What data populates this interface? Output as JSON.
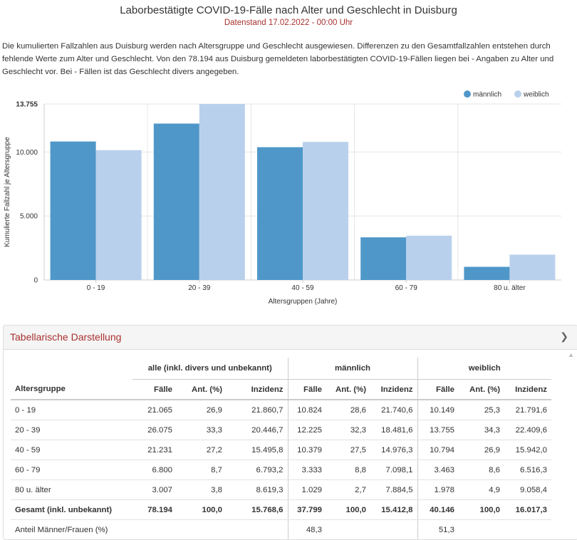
{
  "header": {
    "title": "Laborbestätigte COVID-19-Fälle nach Alter und Geschlecht in Duisburg",
    "subtitle": "Datenstand 17.02.2022 - 00:00 Uhr",
    "description": "Die kumulierten Fallzahlen aus Duisburg werden nach Altersgruppe und Geschlecht ausgewiesen. Differenzen zu den Gesamtfallzahlen entstehen durch fehlende Werte zum Alter und Geschlecht. Von den 78.194 aus Duisburg gemeldeten laborbestätigten COVID-19-Fällen liegen bei - Angaben zu Alter und Geschlecht vor. Bei - Fällen ist das Geschlecht divers angegeben."
  },
  "colors": {
    "male": "#4f97c9",
    "female": "#b9d0ec",
    "accent": "#a8312f"
  },
  "chart_data": {
    "type": "bar",
    "categories": [
      "0 - 19",
      "20 - 39",
      "40 - 59",
      "60 - 79",
      "80 u. älter"
    ],
    "series": [
      {
        "name": "männlich",
        "values": [
          10824,
          12225,
          10379,
          3333,
          1029
        ]
      },
      {
        "name": "weiblich",
        "values": [
          10149,
          13755,
          10794,
          3463,
          1978
        ]
      }
    ],
    "ylabel": "Kumulierte Fallzahl je Altersgruppe",
    "xlabel": "Altersgruppen (Jahre)",
    "ylim": [
      0,
      13755
    ],
    "yticks": [
      0,
      5000,
      10000,
      13755
    ],
    "ytick_labels": [
      "0",
      "5.000",
      "10.000",
      "13.755"
    ],
    "legend_position": "top-right",
    "grid": true
  },
  "table_panel": {
    "title": "Tabellarische Darstellung",
    "group_headers": [
      "alle (inkl. divers und unbekannt)",
      "männlich",
      "weiblich"
    ],
    "column_headers": [
      "Altersgruppe",
      "Fälle",
      "Ant. (%)",
      "Inzidenz",
      "Fälle",
      "Ant. (%)",
      "Inzidenz",
      "Fälle",
      "Ant. (%)",
      "Inzidenz"
    ],
    "rows": [
      [
        "0 - 19",
        "21.065",
        "26,9",
        "21.860,7",
        "10.824",
        "28,6",
        "21.740,6",
        "10.149",
        "25,3",
        "21.791,6"
      ],
      [
        "20 - 39",
        "26.075",
        "33,3",
        "20.446,7",
        "12.225",
        "32,3",
        "18.481,6",
        "13.755",
        "34,3",
        "22.409,6"
      ],
      [
        "40 - 59",
        "21.231",
        "27,2",
        "15.495,8",
        "10.379",
        "27,5",
        "14.976,3",
        "10.794",
        "26,9",
        "15.942,0"
      ],
      [
        "60 - 79",
        "6.800",
        "8,7",
        "6.793,2",
        "3.333",
        "8,8",
        "7.098,1",
        "3.463",
        "8,6",
        "6.516,3"
      ],
      [
        "80 u. älter",
        "3.007",
        "3,8",
        "8.619,3",
        "1.029",
        "2,7",
        "7.884,5",
        "1.978",
        "4,9",
        "9.058,4"
      ]
    ],
    "total_row": [
      "Gesamt (inkl. unbekannt)",
      "78.194",
      "100,0",
      "15.768,6",
      "37.799",
      "100,0",
      "15.412,8",
      "40.146",
      "100,0",
      "16.017,3"
    ],
    "ratio_row": [
      "Anteil Männer/Frauen (%)",
      "",
      "",
      "",
      "48,3",
      "",
      "",
      "51,3",
      "",
      ""
    ]
  }
}
